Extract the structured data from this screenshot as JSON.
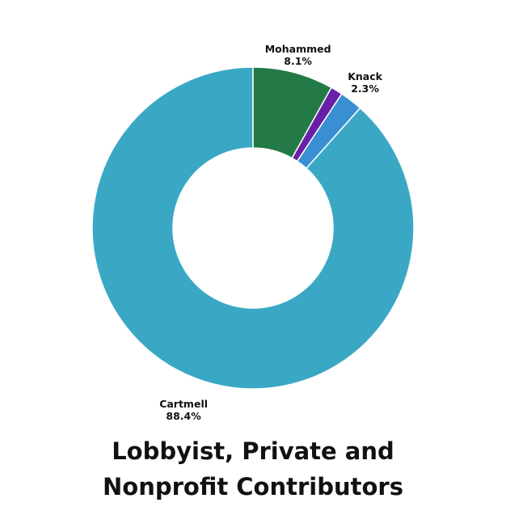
{
  "chart_data": {
    "type": "pie",
    "donut": true,
    "title_lines": [
      "Lobbyist, Private and",
      "Nonprofit Contributors"
    ],
    "slices": [
      {
        "name": "Cartmell",
        "value": 88.4,
        "label": "88.4%",
        "color": "#3aa8c4"
      },
      {
        "name": "Knack",
        "value": 2.3,
        "label": "2.3%",
        "color": "#3a8fd2"
      },
      {
        "name": "",
        "value": 1.2,
        "label": "",
        "color": "#6a1fa8"
      },
      {
        "name": "Mohammed",
        "value": 8.1,
        "label": "8.1%",
        "color": "#237a46"
      }
    ],
    "start_angle_deg": 0,
    "direction": "counterclockwise",
    "legend": "none"
  }
}
